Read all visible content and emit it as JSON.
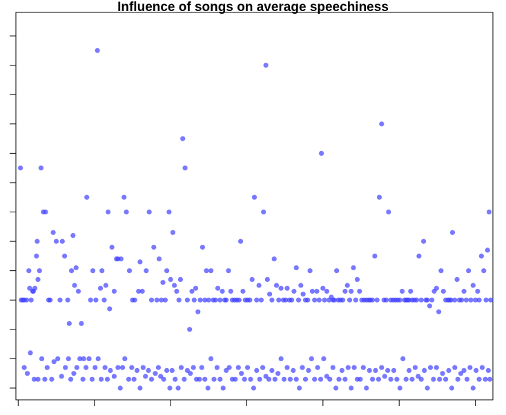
{
  "chart_data": {
    "type": "scatter",
    "title": "Influence of songs on average speechiness",
    "xlabel": "",
    "ylabel": "",
    "grid": false,
    "x_ticks": [
      0,
      100,
      200,
      300,
      400,
      500,
      600
    ],
    "y_ticks": [
      0,
      1,
      2,
      3,
      4,
      5,
      6,
      7,
      8,
      9,
      10,
      11,
      12
    ],
    "xlim": [
      -3,
      623
    ],
    "ylim": [
      -0.4,
      12.8
    ],
    "point_color": "#4040ff",
    "points": [
      [
        3,
        7.5
      ],
      [
        4,
        3.0
      ],
      [
        6,
        3.0
      ],
      [
        8,
        3.0
      ],
      [
        11,
        3.0
      ],
      [
        14,
        4.0
      ],
      [
        15,
        3.4
      ],
      [
        17,
        3.0
      ],
      [
        19,
        3.3
      ],
      [
        20,
        3.3
      ],
      [
        22,
        3.4
      ],
      [
        24,
        4.5
      ],
      [
        25,
        5.0
      ],
      [
        26,
        3.7
      ],
      [
        28,
        4.0
      ],
      [
        30,
        7.5
      ],
      [
        33,
        6.0
      ],
      [
        36,
        6.0
      ],
      [
        40,
        3.0
      ],
      [
        42,
        3.0
      ],
      [
        46,
        5.3
      ],
      [
        50,
        5.0
      ],
      [
        55,
        3.0
      ],
      [
        58,
        5.0
      ],
      [
        61,
        4.5
      ],
      [
        65,
        3.0
      ],
      [
        67,
        2.2
      ],
      [
        70,
        4.0
      ],
      [
        72,
        5.2
      ],
      [
        74,
        3.5
      ],
      [
        76,
        4.1
      ],
      [
        79,
        3.3
      ],
      [
        83,
        2.2
      ],
      [
        86,
        1.0
      ],
      [
        90,
        6.5
      ],
      [
        95,
        3.0
      ],
      [
        98,
        4.0
      ],
      [
        102,
        3.0
      ],
      [
        104,
        11.5
      ],
      [
        108,
        3.4
      ],
      [
        110,
        4.0
      ],
      [
        113,
        3.0
      ],
      [
        115,
        3.5
      ],
      [
        118,
        6.0
      ],
      [
        120,
        2.7
      ],
      [
        123,
        4.8
      ],
      [
        126,
        3.3
      ],
      [
        129,
        4.4
      ],
      [
        131,
        4.4
      ],
      [
        135,
        4.4
      ],
      [
        139,
        6.5
      ],
      [
        142,
        6.0
      ],
      [
        146,
        4.0
      ],
      [
        150,
        3.0
      ],
      [
        153,
        3.0
      ],
      [
        158,
        3.3
      ],
      [
        160,
        4.3
      ],
      [
        163,
        3.3
      ],
      [
        168,
        4.0
      ],
      [
        172,
        6.0
      ],
      [
        175,
        3.0
      ],
      [
        178,
        4.8
      ],
      [
        182,
        3.0
      ],
      [
        185,
        4.4
      ],
      [
        188,
        3.0
      ],
      [
        190,
        3.6
      ],
      [
        193,
        3.0
      ],
      [
        195,
        4.0
      ],
      [
        198,
        6.0
      ],
      [
        200,
        3.7
      ],
      [
        203,
        5.3
      ],
      [
        205,
        3.5
      ],
      [
        208,
        3.3
      ],
      [
        211,
        3.0
      ],
      [
        213,
        3.7
      ],
      [
        216,
        8.5
      ],
      [
        219,
        7.5
      ],
      [
        222,
        3.0
      ],
      [
        225,
        2.0
      ],
      [
        228,
        3.3
      ],
      [
        231,
        3.0
      ],
      [
        233,
        3.4
      ],
      [
        236,
        2.6
      ],
      [
        239,
        3.0
      ],
      [
        242,
        4.8
      ],
      [
        245,
        3.0
      ],
      [
        247,
        4.0
      ],
      [
        250,
        3.0
      ],
      [
        253,
        4.0
      ],
      [
        256,
        3.0
      ],
      [
        259,
        3.0
      ],
      [
        262,
        3.4
      ],
      [
        265,
        3.0
      ],
      [
        268,
        3.3
      ],
      [
        271,
        3.0
      ],
      [
        273,
        3.0
      ],
      [
        276,
        4.0
      ],
      [
        279,
        3.3
      ],
      [
        281,
        3.0
      ],
      [
        284,
        3.0
      ],
      [
        287,
        3.0
      ],
      [
        290,
        3.0
      ],
      [
        292,
        5.0
      ],
      [
        295,
        3.3
      ],
      [
        298,
        3.0
      ],
      [
        301,
        3.0
      ],
      [
        304,
        3.0
      ],
      [
        307,
        3.7
      ],
      [
        310,
        6.5
      ],
      [
        313,
        3.0
      ],
      [
        316,
        3.5
      ],
      [
        319,
        3.0
      ],
      [
        322,
        6.0
      ],
      [
        325,
        11.0
      ],
      [
        327,
        3.7
      ],
      [
        330,
        3.2
      ],
      [
        333,
        3.0
      ],
      [
        336,
        4.4
      ],
      [
        339,
        3.5
      ],
      [
        342,
        3.0
      ],
      [
        345,
        3.4
      ],
      [
        348,
        3.0
      ],
      [
        351,
        3.0
      ],
      [
        353,
        3.4
      ],
      [
        356,
        3.0
      ],
      [
        359,
        3.0
      ],
      [
        362,
        3.3
      ],
      [
        365,
        4.1
      ],
      [
        368,
        3.0
      ],
      [
        371,
        3.5
      ],
      [
        374,
        3.2
      ],
      [
        377,
        3.0
      ],
      [
        380,
        3.0
      ],
      [
        383,
        4.0
      ],
      [
        386,
        3.3
      ],
      [
        389,
        3.0
      ],
      [
        392,
        3.3
      ],
      [
        395,
        3.0
      ],
      [
        398,
        8.0
      ],
      [
        400,
        3.4
      ],
      [
        402,
        3.0
      ],
      [
        405,
        3.3
      ],
      [
        408,
        3.0
      ],
      [
        411,
        3.1
      ],
      [
        413,
        3.0
      ],
      [
        415,
        3.0
      ],
      [
        418,
        4.0
      ],
      [
        420,
        3.0
      ],
      [
        423,
        3.0
      ],
      [
        426,
        3.0
      ],
      [
        429,
        3.3
      ],
      [
        432,
        3.5
      ],
      [
        435,
        3.0
      ],
      [
        437,
        3.3
      ],
      [
        440,
        4.1
      ],
      [
        443,
        3.0
      ],
      [
        445,
        3.7
      ],
      [
        448,
        3.3
      ],
      [
        451,
        3.0
      ],
      [
        454,
        3.0
      ],
      [
        457,
        3.0
      ],
      [
        460,
        3.0
      ],
      [
        462,
        3.0
      ],
      [
        465,
        3.0
      ],
      [
        468,
        4.5
      ],
      [
        471,
        3.0
      ],
      [
        474,
        6.5
      ],
      [
        477,
        9.0
      ],
      [
        480,
        3.0
      ],
      [
        483,
        3.0
      ],
      [
        486,
        6.0
      ],
      [
        489,
        3.0
      ],
      [
        492,
        3.0
      ],
      [
        495,
        3.0
      ],
      [
        498,
        3.0
      ],
      [
        501,
        3.0
      ],
      [
        504,
        3.3
      ],
      [
        507,
        3.0
      ],
      [
        509,
        3.0
      ],
      [
        511,
        3.0
      ],
      [
        513,
        3.0
      ],
      [
        515,
        3.3
      ],
      [
        517,
        3.0
      ],
      [
        520,
        3.0
      ],
      [
        523,
        3.0
      ],
      [
        526,
        4.5
      ],
      [
        529,
        3.0
      ],
      [
        532,
        5.0
      ],
      [
        535,
        3.0
      ],
      [
        537,
        3.0
      ],
      [
        540,
        2.8
      ],
      [
        543,
        3.0
      ],
      [
        546,
        3.3
      ],
      [
        549,
        3.4
      ],
      [
        552,
        2.6
      ],
      [
        555,
        4.0
      ],
      [
        558,
        3.3
      ],
      [
        561,
        3.0
      ],
      [
        564,
        3.0
      ],
      [
        566,
        3.0
      ],
      [
        568,
        3.0
      ],
      [
        570,
        5.3
      ],
      [
        573,
        3.0
      ],
      [
        576,
        3.7
      ],
      [
        579,
        3.0
      ],
      [
        582,
        3.0
      ],
      [
        585,
        3.3
      ],
      [
        588,
        3.0
      ],
      [
        591,
        4.0
      ],
      [
        594,
        3.0
      ],
      [
        597,
        3.5
      ],
      [
        600,
        3.0
      ],
      [
        603,
        3.3
      ],
      [
        605,
        3.0
      ],
      [
        608,
        4.5
      ],
      [
        611,
        4.0
      ],
      [
        614,
        3.0
      ],
      [
        616,
        4.7
      ],
      [
        618,
        6.0
      ],
      [
        620,
        3.0
      ],
      [
        8,
        0.7
      ],
      [
        12,
        0.5
      ],
      [
        16,
        1.2
      ],
      [
        21,
        0.3
      ],
      [
        26,
        0.3
      ],
      [
        31,
        1.0
      ],
      [
        35,
        0.3
      ],
      [
        38,
        0.7
      ],
      [
        44,
        0.3
      ],
      [
        47,
        0.9
      ],
      [
        52,
        1.0
      ],
      [
        57,
        0.4
      ],
      [
        62,
        0.7
      ],
      [
        66,
        1.0
      ],
      [
        69,
        0.3
      ],
      [
        73,
        0.5
      ],
      [
        77,
        0.7
      ],
      [
        81,
        1.0
      ],
      [
        85,
        0.3
      ],
      [
        89,
        0.7
      ],
      [
        93,
        1.0
      ],
      [
        97,
        0.3
      ],
      [
        101,
        0.7
      ],
      [
        105,
        1.0
      ],
      [
        109,
        0.3
      ],
      [
        114,
        0.7
      ],
      [
        117,
        0.3
      ],
      [
        121,
        0.6
      ],
      [
        126,
        0.4
      ],
      [
        131,
        0.7
      ],
      [
        134,
        0.0
      ],
      [
        137,
        0.7
      ],
      [
        140,
        1.0
      ],
      [
        145,
        0.3
      ],
      [
        149,
        0.7
      ],
      [
        152,
        0.3
      ],
      [
        156,
        0.6
      ],
      [
        160,
        0.0
      ],
      [
        164,
        0.7
      ],
      [
        167,
        0.4
      ],
      [
        171,
        0.6
      ],
      [
        175,
        0.3
      ],
      [
        180,
        0.5
      ],
      [
        184,
        0.7
      ],
      [
        187,
        0.4
      ],
      [
        191,
        0.3
      ],
      [
        195,
        0.6
      ],
      [
        199,
        0.0
      ],
      [
        202,
        0.6
      ],
      [
        206,
        0.3
      ],
      [
        210,
        0.0
      ],
      [
        214,
        0.7
      ],
      [
        218,
        0.3
      ],
      [
        222,
        0.6
      ],
      [
        226,
        0.5
      ],
      [
        230,
        0.7
      ],
      [
        234,
        0.3
      ],
      [
        238,
        0.3
      ],
      [
        241,
        0.7
      ],
      [
        245,
        0.3
      ],
      [
        249,
        0.0
      ],
      [
        253,
        1.0
      ],
      [
        257,
        0.3
      ],
      [
        261,
        0.7
      ],
      [
        265,
        0.3
      ],
      [
        269,
        0.0
      ],
      [
        273,
        0.6
      ],
      [
        277,
        0.7
      ],
      [
        281,
        0.3
      ],
      [
        285,
        0.3
      ],
      [
        289,
        0.7
      ],
      [
        293,
        0.5
      ],
      [
        297,
        0.3
      ],
      [
        301,
        0.7
      ],
      [
        305,
        0.3
      ],
      [
        309,
        0.0
      ],
      [
        313,
        0.6
      ],
      [
        317,
        0.3
      ],
      [
        321,
        0.7
      ],
      [
        325,
        0.4
      ],
      [
        329,
        0.3
      ],
      [
        333,
        0.6
      ],
      [
        337,
        0.3
      ],
      [
        341,
        0.5
      ],
      [
        345,
        1.0
      ],
      [
        349,
        0.3
      ],
      [
        353,
        0.7
      ],
      [
        357,
        0.3
      ],
      [
        361,
        0.6
      ],
      [
        365,
        0.3
      ],
      [
        369,
        0.0
      ],
      [
        373,
        0.7
      ],
      [
        377,
        0.3
      ],
      [
        381,
        0.6
      ],
      [
        385,
        1.0
      ],
      [
        389,
        0.3
      ],
      [
        393,
        0.7
      ],
      [
        397,
        0.3
      ],
      [
        401,
        1.0
      ],
      [
        405,
        0.4
      ],
      [
        409,
        0.3
      ],
      [
        413,
        0.7
      ],
      [
        417,
        0.0
      ],
      [
        421,
        0.3
      ],
      [
        425,
        0.6
      ],
      [
        429,
        0.3
      ],
      [
        433,
        0.7
      ],
      [
        437,
        0.0
      ],
      [
        441,
        0.7
      ],
      [
        445,
        0.3
      ],
      [
        449,
        0.3
      ],
      [
        453,
        0.7
      ],
      [
        457,
        0.0
      ],
      [
        461,
        0.6
      ],
      [
        465,
        0.3
      ],
      [
        469,
        0.6
      ],
      [
        473,
        0.3
      ],
      [
        477,
        0.7
      ],
      [
        481,
        0.4
      ],
      [
        485,
        0.6
      ],
      [
        489,
        0.3
      ],
      [
        493,
        0.6
      ],
      [
        497,
        0.3
      ],
      [
        501,
        0.0
      ],
      [
        505,
        1.0
      ],
      [
        509,
        0.3
      ],
      [
        513,
        0.6
      ],
      [
        517,
        0.3
      ],
      [
        521,
        0.7
      ],
      [
        525,
        0.4
      ],
      [
        529,
        0.3
      ],
      [
        533,
        0.6
      ],
      [
        537,
        0.0
      ],
      [
        541,
        0.7
      ],
      [
        545,
        0.3
      ],
      [
        549,
        0.7
      ],
      [
        553,
        0.3
      ],
      [
        557,
        0.5
      ],
      [
        561,
        0.3
      ],
      [
        565,
        0.6
      ],
      [
        569,
        0.0
      ],
      [
        573,
        0.7
      ],
      [
        577,
        0.3
      ],
      [
        581,
        0.5
      ],
      [
        585,
        0.6
      ],
      [
        589,
        0.3
      ],
      [
        593,
        0.7
      ],
      [
        597,
        0.0
      ],
      [
        601,
        0.6
      ],
      [
        605,
        0.3
      ],
      [
        609,
        0.7
      ],
      [
        613,
        0.3
      ],
      [
        617,
        0.6
      ],
      [
        619,
        0.3
      ]
    ]
  }
}
